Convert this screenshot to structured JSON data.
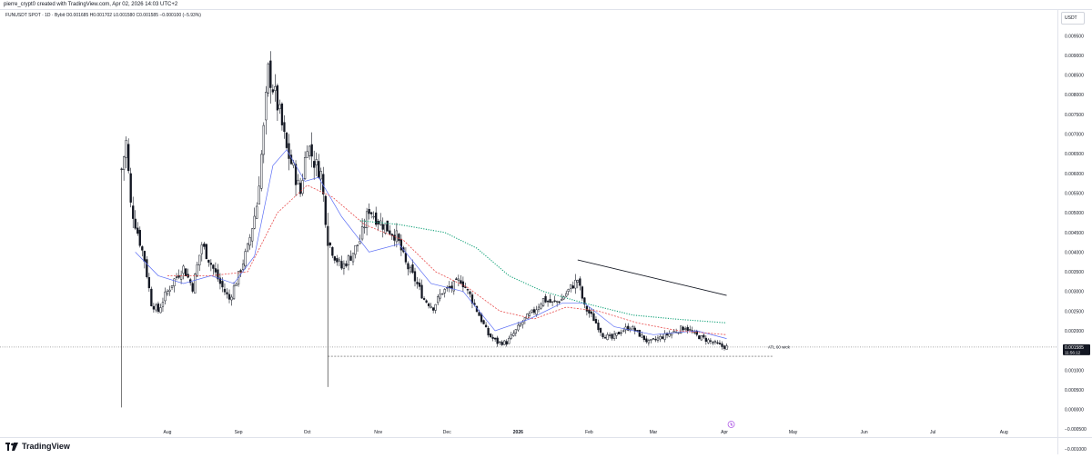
{
  "header": {
    "text": "pierre_crypt0 created with TradingView.com, Apr 02, 2026 14:03 UTC+2"
  },
  "symbol_line": "FUNUSDT SPOT · 1D · Bybit  O0.001685 H0.001702 L0.001580 C0.001585 −0.000100 (−5.93%)",
  "price_axis": {
    "unit": "USDT"
  },
  "last_price": {
    "value": "0.001585",
    "countdown": "11:56:12"
  },
  "annotations": {
    "atl_label": "ATL 60 wick"
  },
  "footer": {
    "brand": "TradingView"
  },
  "colors": {
    "candle": "#131722",
    "ma_blue": "#5b6ef5",
    "ma_red": "#e84c4c",
    "ma_green": "#15a37a",
    "trendline": "#131722",
    "grid": "#e0e3eb"
  },
  "chart_data": {
    "type": "candlestick",
    "title": "FUNUSDT SPOT · 1D · Bybit",
    "y_ticks": [
      0.0095,
      0.009,
      0.0085,
      0.008,
      0.0075,
      0.007,
      0.0065,
      0.006,
      0.0055,
      0.005,
      0.0045,
      0.004,
      0.0035,
      0.003,
      0.0025,
      0.002,
      0.0015,
      0.001,
      0.0005,
      0.0,
      -0.0005,
      -0.001
    ],
    "y_tick_labels": [
      "0.009500",
      "0.009000",
      "0.008500",
      "0.008000",
      "0.007500",
      "0.007000",
      "0.006500",
      "0.006000",
      "0.005500",
      "0.005000",
      "0.004500",
      "0.004000",
      "0.003500",
      "0.003000",
      "0.002500",
      "0.002000",
      "0.001500",
      "0.001000",
      "0.000500",
      "0.000000",
      "−0.000500",
      "−0.001000"
    ],
    "ylim": [
      -0.00105,
      0.0099
    ],
    "x_ticks": [
      "Aug",
      "Sep",
      "Oct",
      "Nov",
      "Dec",
      "2026",
      "Feb",
      "Mar",
      "Apr",
      "May",
      "Jun",
      "Jul",
      "Aug"
    ],
    "close_path": [
      [
        "2025-07-12",
        0.0061
      ],
      [
        "2025-07-14",
        0.0068
      ],
      [
        "2025-07-16",
        0.0052
      ],
      [
        "2025-07-19",
        0.0045
      ],
      [
        "2025-07-22",
        0.0038
      ],
      [
        "2025-07-25",
        0.0027
      ],
      [
        "2025-07-28",
        0.0025
      ],
      [
        "2025-07-31",
        0.0029
      ],
      [
        "2025-08-04",
        0.0033
      ],
      [
        "2025-08-08",
        0.0036
      ],
      [
        "2025-08-12",
        0.0031
      ],
      [
        "2025-08-16",
        0.0042
      ],
      [
        "2025-08-20",
        0.0037
      ],
      [
        "2025-08-24",
        0.0032
      ],
      [
        "2025-08-28",
        0.0028
      ],
      [
        "2025-09-01",
        0.0034
      ],
      [
        "2025-09-05",
        0.0041
      ],
      [
        "2025-09-09",
        0.0052
      ],
      [
        "2025-09-12",
        0.0071
      ],
      [
        "2025-09-14",
        0.0086
      ],
      [
        "2025-09-16",
        0.0082
      ],
      [
        "2025-09-19",
        0.0075
      ],
      [
        "2025-09-22",
        0.0066
      ],
      [
        "2025-09-25",
        0.0061
      ],
      [
        "2025-09-28",
        0.0055
      ],
      [
        "2025-10-01",
        0.0068
      ],
      [
        "2025-10-04",
        0.0063
      ],
      [
        "2025-10-07",
        0.006
      ],
      [
        "2025-10-10",
        0.0043
      ],
      [
        "2025-10-13",
        0.0039
      ],
      [
        "2025-10-16",
        0.0036
      ],
      [
        "2025-10-20",
        0.0039
      ],
      [
        "2025-10-24",
        0.0043
      ],
      [
        "2025-10-28",
        0.0051
      ],
      [
        "2025-11-01",
        0.0048
      ],
      [
        "2025-11-05",
        0.0046
      ],
      [
        "2025-11-09",
        0.0044
      ],
      [
        "2025-11-13",
        0.0037
      ],
      [
        "2025-11-17",
        0.0033
      ],
      [
        "2025-11-21",
        0.0028
      ],
      [
        "2025-11-25",
        0.0026
      ],
      [
        "2025-11-29",
        0.003
      ],
      [
        "2025-12-03",
        0.0031
      ],
      [
        "2025-12-07",
        0.0033
      ],
      [
        "2025-12-11",
        0.0029
      ],
      [
        "2025-12-15",
        0.0024
      ],
      [
        "2025-12-19",
        0.0019
      ],
      [
        "2025-12-23",
        0.0017
      ],
      [
        "2025-12-27",
        0.0017
      ],
      [
        "2025-12-31",
        0.002
      ],
      [
        "2026-01-04",
        0.0023
      ],
      [
        "2026-01-08",
        0.0025
      ],
      [
        "2026-01-12",
        0.0028
      ],
      [
        "2026-01-16",
        0.0027
      ],
      [
        "2026-01-20",
        0.0028
      ],
      [
        "2026-01-24",
        0.0031
      ],
      [
        "2026-01-27",
        0.0033
      ],
      [
        "2026-01-30",
        0.0026
      ],
      [
        "2026-02-03",
        0.0023
      ],
      [
        "2026-02-07",
        0.0019
      ],
      [
        "2026-02-11",
        0.0018
      ],
      [
        "2026-02-15",
        0.002
      ],
      [
        "2026-02-19",
        0.0021
      ],
      [
        "2026-02-23",
        0.0019
      ],
      [
        "2026-02-27",
        0.0017
      ],
      [
        "2026-03-03",
        0.0018
      ],
      [
        "2026-03-07",
        0.0019
      ],
      [
        "2026-03-11",
        0.002
      ],
      [
        "2026-03-15",
        0.0021
      ],
      [
        "2026-03-19",
        0.0019
      ],
      [
        "2026-03-23",
        0.0018
      ],
      [
        "2026-03-27",
        0.0017
      ],
      [
        "2026-03-31",
        0.0016
      ],
      [
        "2026-04-02",
        0.00159
      ]
    ],
    "long_wicks": [
      {
        "date": "2025-07-12",
        "high": 0.0061,
        "low": 5e-05
      },
      {
        "date": "2025-10-10",
        "high": 0.005,
        "low": 0.00057
      }
    ],
    "ma_blue": [
      [
        "2025-07-18",
        0.004
      ],
      [
        "2025-07-28",
        0.0034
      ],
      [
        "2025-08-08",
        0.0032
      ],
      [
        "2025-08-20",
        0.0034
      ],
      [
        "2025-08-30",
        0.0032
      ],
      [
        "2025-09-08",
        0.0039
      ],
      [
        "2025-09-16",
        0.0062
      ],
      [
        "2025-09-22",
        0.0066
      ],
      [
        "2025-09-30",
        0.0058
      ],
      [
        "2025-10-06",
        0.0059
      ],
      [
        "2025-10-16",
        0.0049
      ],
      [
        "2025-10-28",
        0.004
      ],
      [
        "2025-11-10",
        0.0042
      ],
      [
        "2025-11-24",
        0.0032
      ],
      [
        "2025-12-08",
        0.003
      ],
      [
        "2025-12-22",
        0.002
      ],
      [
        "2026-01-06",
        0.0023
      ],
      [
        "2026-01-20",
        0.0027
      ],
      [
        "2026-01-30",
        0.0027
      ],
      [
        "2026-02-12",
        0.0021
      ],
      [
        "2026-03-01",
        0.0019
      ],
      [
        "2026-03-20",
        0.002
      ],
      [
        "2026-04-02",
        0.0018
      ]
    ],
    "ma_red": [
      [
        "2025-08-01",
        0.0034
      ],
      [
        "2025-08-20",
        0.0034
      ],
      [
        "2025-09-05",
        0.0035
      ],
      [
        "2025-09-18",
        0.005
      ],
      [
        "2025-10-01",
        0.0057
      ],
      [
        "2025-10-12",
        0.0054
      ],
      [
        "2025-10-26",
        0.0047
      ],
      [
        "2025-11-12",
        0.0043
      ],
      [
        "2025-11-26",
        0.0035
      ],
      [
        "2025-12-10",
        0.0031
      ],
      [
        "2025-12-24",
        0.0025
      ],
      [
        "2026-01-08",
        0.0023
      ],
      [
        "2026-01-22",
        0.0026
      ],
      [
        "2026-02-05",
        0.0025
      ],
      [
        "2026-02-22",
        0.0022
      ],
      [
        "2026-03-12",
        0.002
      ],
      [
        "2026-04-02",
        0.0019
      ]
    ],
    "ma_green": [
      [
        "2025-10-24",
        0.0048
      ],
      [
        "2025-11-10",
        0.0047
      ],
      [
        "2025-11-30",
        0.0045
      ],
      [
        "2025-12-14",
        0.0041
      ],
      [
        "2025-12-28",
        0.0034
      ],
      [
        "2026-01-12",
        0.003
      ],
      [
        "2026-01-30",
        0.0027
      ],
      [
        "2026-02-20",
        0.0024
      ],
      [
        "2026-03-10",
        0.0023
      ],
      [
        "2026-04-02",
        0.0022
      ]
    ],
    "trendline": {
      "from": [
        "2026-01-27",
        0.0038
      ],
      "to": [
        "2026-04-02",
        0.0029
      ]
    },
    "support_line": {
      "from": [
        "2025-10-10",
        0.00135
      ],
      "to": [
        "2026-04-22",
        0.00135
      ]
    },
    "grid": false,
    "legend": "none"
  }
}
